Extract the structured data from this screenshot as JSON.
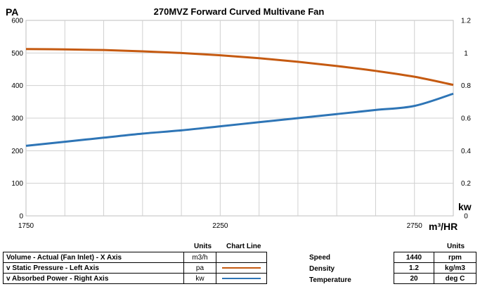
{
  "chart_data": {
    "type": "line",
    "title": "270MVZ Forward Curved Multivane Fan",
    "xlabel": "m³/HR",
    "ylabel_left": "PA",
    "ylabel_right": "kw",
    "xlim": [
      1750,
      2850
    ],
    "ylim_left": [
      0,
      600
    ],
    "ylim_right": [
      0,
      1.2
    ],
    "x_ticks": [
      "1750",
      "2250",
      "2750"
    ],
    "left_ticks": [
      "0",
      "100",
      "200",
      "300",
      "400",
      "500",
      "600"
    ],
    "right_ticks": [
      "0",
      "0.2",
      "0.4",
      "0.6",
      "0.8",
      "1",
      "1.2"
    ],
    "grid": true,
    "series": [
      {
        "axis": "left",
        "color": "#c55a11",
        "x": [
          1750,
          1850,
          1950,
          2050,
          2150,
          2250,
          2350,
          2450,
          2550,
          2650,
          2750,
          2850
        ],
        "values": [
          512,
          511,
          509,
          505,
          500,
          493,
          484,
          473,
          460,
          445,
          427,
          402
        ]
      },
      {
        "axis": "right",
        "color": "#2e75b6",
        "x": [
          1750,
          1850,
          1950,
          2050,
          2150,
          2250,
          2350,
          2450,
          2550,
          2650,
          2750,
          2850
        ],
        "values": [
          0.43,
          0.455,
          0.48,
          0.505,
          0.525,
          0.55,
          0.575,
          0.6,
          0.625,
          0.65,
          0.675,
          0.75
        ]
      }
    ]
  },
  "legend_table": {
    "header_units": "Units",
    "header_chart_line": "Chart Line",
    "rows": [
      {
        "label": "Volume - Actual (Fan Inlet) - X Axis",
        "units": "m3/h",
        "line_color": ""
      },
      {
        "label": "v Static Pressure - Left Axis",
        "units": "pa",
        "line_color": "#c55a11"
      },
      {
        "label": "v Absorbed Power - Right Axis",
        "units": "kw",
        "line_color": "#2e75b6"
      }
    ]
  },
  "conditions": {
    "header_units": "Units",
    "rows": [
      {
        "label": "Speed",
        "value": "1440",
        "units": "rpm"
      },
      {
        "label": "Density",
        "value": "1.2",
        "units": "kg/m3"
      },
      {
        "label": "Temperature",
        "value": "20",
        "units": "deg C"
      }
    ]
  }
}
